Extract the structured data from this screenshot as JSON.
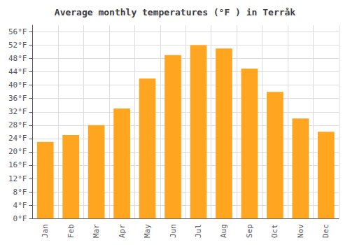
{
  "chart_data": {
    "type": "bar",
    "title": "Average monthly temperatures (°F ) in Terråk",
    "categories": [
      "Jan",
      "Feb",
      "Mar",
      "Apr",
      "May",
      "Jun",
      "Jul",
      "Aug",
      "Sep",
      "Oct",
      "Nov",
      "Dec"
    ],
    "values": [
      23,
      25,
      28,
      33,
      42,
      49,
      52,
      51,
      45,
      38,
      30,
      26
    ],
    "color": "#FFA520",
    "ylim": [
      0,
      58
    ],
    "yticks": [
      {
        "value": 0,
        "label": "0°F"
      },
      {
        "value": 4,
        "label": "4°F"
      },
      {
        "value": 8,
        "label": "8°F"
      },
      {
        "value": 12,
        "label": "12°F"
      },
      {
        "value": 16,
        "label": "16°F"
      },
      {
        "value": 20,
        "label": "20°F"
      },
      {
        "value": 24,
        "label": "24°F"
      },
      {
        "value": 28,
        "label": "28°F"
      },
      {
        "value": 32,
        "label": "32°F"
      },
      {
        "value": 36,
        "label": "36°F"
      },
      {
        "value": 40,
        "label": "40°F"
      },
      {
        "value": 44,
        "label": "44°F"
      },
      {
        "value": 48,
        "label": "48°F"
      },
      {
        "value": 52,
        "label": "52°F"
      },
      {
        "value": 56,
        "label": "56°F"
      }
    ],
    "grid": true
  }
}
